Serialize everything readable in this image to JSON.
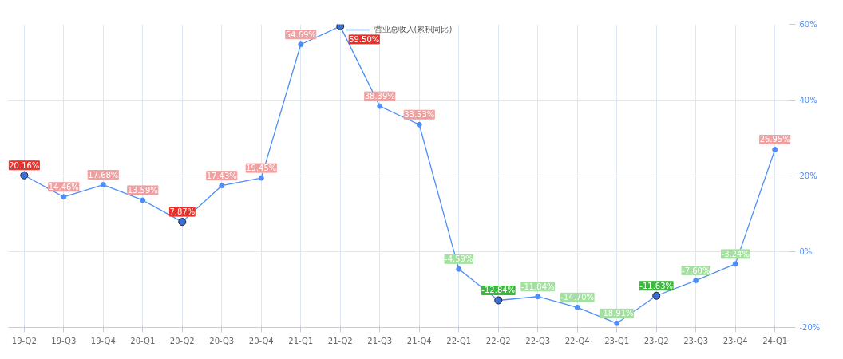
{
  "chart_data": {
    "type": "line",
    "categories": [
      "19-Q2",
      "19-Q3",
      "19-Q4",
      "20-Q1",
      "20-Q2",
      "20-Q3",
      "20-Q4",
      "21-Q1",
      "21-Q2",
      "21-Q3",
      "21-Q4",
      "22-Q1",
      "22-Q2",
      "22-Q3",
      "22-Q4",
      "23-Q1",
      "23-Q2",
      "23-Q3",
      "23-Q4",
      "24-Q1"
    ],
    "series": [
      {
        "name": "营业总收入(累积同比)",
        "color": "#4e8ef7",
        "values": [
          20.16,
          14.46,
          17.68,
          13.59,
          7.87,
          17.43,
          19.45,
          54.69,
          59.5,
          38.39,
          33.53,
          -4.59,
          -12.84,
          -11.84,
          -14.7,
          -18.91,
          -11.63,
          -7.6,
          -3.24,
          26.95
        ],
        "colors": [
          "#3a6fd8",
          "#4e8ef7",
          "#4e8ef7",
          "#4e8ef7",
          "#3a6fd8",
          "#4e8ef7",
          "#4e8ef7",
          "#4e8ef7",
          "#3a6fd8",
          "#4e8ef7",
          "#4e8ef7",
          "#4e8ef7",
          "#3a6fd8",
          "#4e8ef7",
          "#4e8ef7",
          "#4e8ef7",
          "#3a6fd8",
          "#4e8ef7",
          "#4e8ef7",
          "#4e8ef7"
        ],
        "value_labels": [
          "20.16%",
          "14.46%",
          "17.68%",
          "13.59%",
          "7.87%",
          "17.43%",
          "19.45%",
          "54.69%",
          "59.50%",
          "38.39%",
          "33.53%",
          "-4.59%",
          "-12.84%",
          "-11.84%",
          "-14.70%",
          "-18.91%",
          "-11.63%",
          "-7.60%",
          "-3.24%",
          "26.95%"
        ]
      }
    ],
    "ylim": [
      -20,
      60
    ],
    "yticks": [
      {
        "value": -20,
        "label": "-20%"
      },
      {
        "value": 0,
        "label": "0%"
      },
      {
        "value": 20,
        "label": "20%"
      },
      {
        "value": 40,
        "label": "40%"
      },
      {
        "value": 60,
        "label": "60%"
      }
    ],
    "grid": true,
    "legend": "top",
    "marker": "circle"
  }
}
